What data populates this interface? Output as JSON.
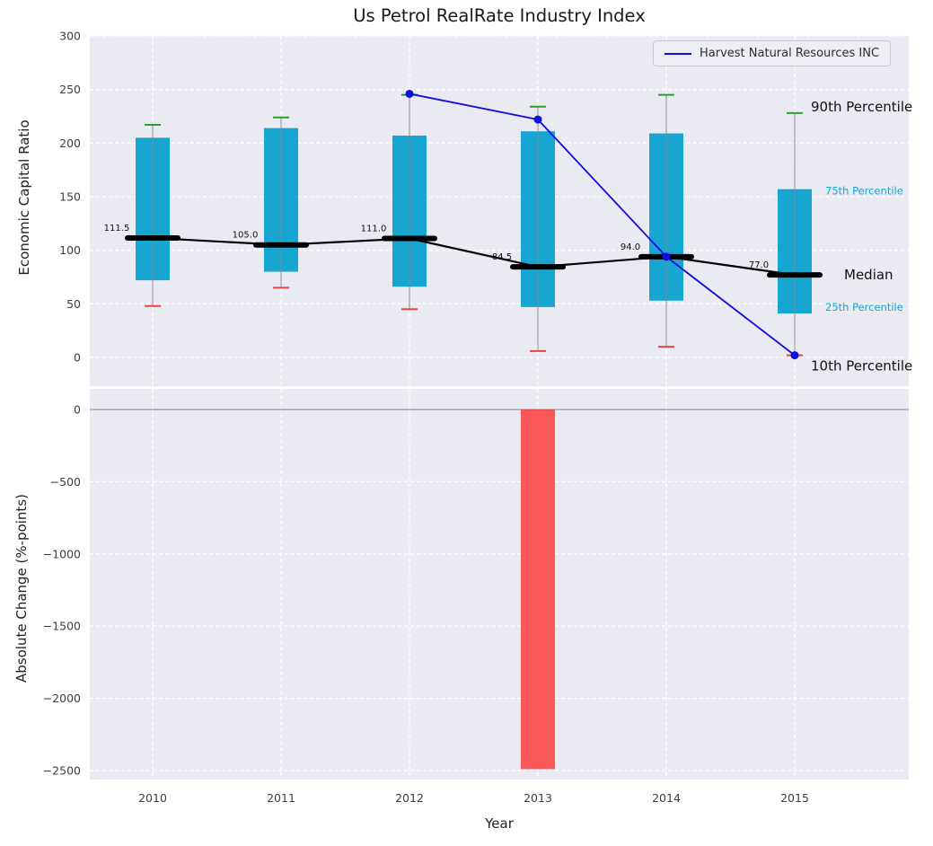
{
  "chart_data": {
    "type": "box",
    "title": "Us Petrol RealRate Industry Index",
    "xlabel": "Year",
    "categories": [
      "2010",
      "2011",
      "2012",
      "2013",
      "2014",
      "2015"
    ],
    "background_color": "#e9eaf2",
    "top_panel": {
      "ylabel": "Economic Capital Ratio",
      "ylim": [
        0,
        300
      ],
      "yticks": [
        0,
        50,
        100,
        150,
        200,
        250,
        300
      ],
      "box_color": "#17a5d1",
      "whisker_top_color": "#2ca02c",
      "whisker_bottom_color": "#e84545",
      "median_color": "#000000",
      "boxes": [
        {
          "category": "2010",
          "p10": 48,
          "p25": 72,
          "median": 111.5,
          "p75": 205,
          "p90": 217,
          "median_label": "111.5"
        },
        {
          "category": "2011",
          "p10": 65,
          "p25": 80,
          "median": 105.0,
          "p75": 214,
          "p90": 224,
          "median_label": "105.0"
        },
        {
          "category": "2012",
          "p10": 45,
          "p25": 66,
          "median": 111.0,
          "p75": 207,
          "p90": 245,
          "median_label": "111.0"
        },
        {
          "category": "2013",
          "p10": 6,
          "p25": 47,
          "median": 84.5,
          "p75": 211,
          "p90": 234,
          "median_label": "84.5"
        },
        {
          "category": "2014",
          "p10": 10,
          "p25": 53,
          "median": 94.0,
          "p75": 209,
          "p90": 245,
          "median_label": "94.0"
        },
        {
          "category": "2015",
          "p10": 2,
          "p25": 41,
          "median": 77.0,
          "p75": 157,
          "p90": 228,
          "median_label": "77.0"
        }
      ],
      "series": {
        "name": "Harvest Natural Resources INC",
        "color": "#0e0edd",
        "points": [
          {
            "category": "2012",
            "value": 246
          },
          {
            "category": "2013",
            "value": 222
          },
          {
            "category": "2014",
            "value": 94
          },
          {
            "category": "2015",
            "value": 2
          }
        ]
      },
      "annotations": [
        {
          "label": "90th Percentile",
          "anchor": "p90",
          "style": "large"
        },
        {
          "label": "75th Percentile",
          "anchor": "p75",
          "style": "small"
        },
        {
          "label": "Median",
          "anchor": "median",
          "style": "large"
        },
        {
          "label": "25th Percentile",
          "anchor": "p25",
          "style": "small"
        },
        {
          "label": "10th Percentile",
          "anchor": "p10",
          "style": "large"
        }
      ]
    },
    "bottom_panel": {
      "ylabel": "Absolute Change (%-points)",
      "ylim": [
        -2500,
        0
      ],
      "yticks": [
        0,
        -500,
        -1000,
        -1500,
        -2000,
        -2500
      ],
      "bar_color": "#fc3d3d",
      "bars": [
        {
          "category": "2013",
          "value": -2490
        }
      ]
    },
    "legend": {
      "position": "upper right",
      "entries": [
        {
          "label": "Harvest Natural Resources INC",
          "color": "#0e0edd"
        }
      ]
    }
  }
}
